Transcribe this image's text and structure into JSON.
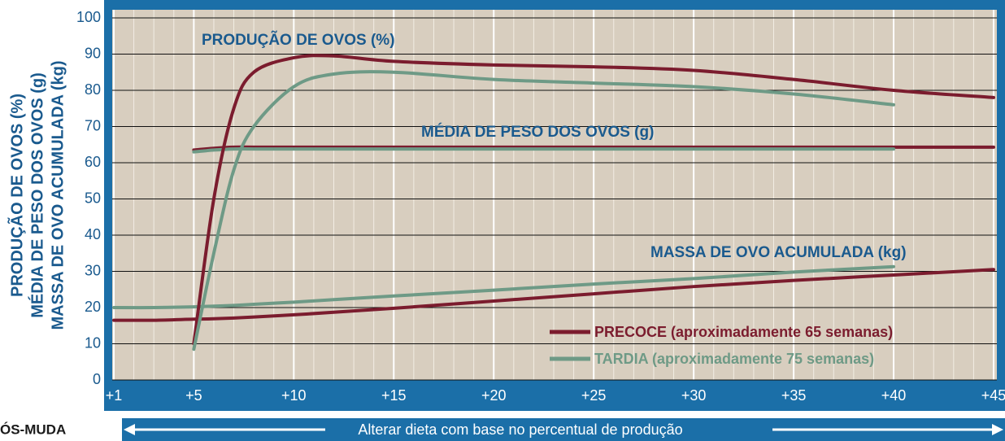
{
  "chart_data": {
    "type": "line",
    "ylabel": [
      "PRODUÇÃO DE OVOS (%)",
      "MÉDIA DE PESO DOS OVOS (g)",
      "MASSA DE OVO ACUMULADA (kg)"
    ],
    "annotations": [
      "PRODUÇÃO DE OVOS (%)",
      "MÉDIA DE PESO DOS OVOS (g)",
      "MASSA DE OVO ACUMULADA (kg)"
    ],
    "left_label": "ÓS-MUDA",
    "arrow_text": "Alterar dieta com base no percentual de produção",
    "x": [
      1,
      3,
      5,
      6,
      7,
      8,
      10,
      12,
      15,
      20,
      25,
      30,
      35,
      40,
      45
    ],
    "series": [
      {
        "name": "PRECOCE (aproximadamente 65 semanas)",
        "color": "#7b1c2e",
        "production": [
          null,
          null,
          10,
          50,
          75,
          85,
          89,
          89.5,
          88,
          87,
          86.5,
          85.5,
          83,
          80,
          78
        ],
        "egg_weight": [
          null,
          null,
          63.5,
          64,
          64.3,
          64.3,
          64.3,
          64.3,
          64.3,
          64.3,
          64.3,
          64.3,
          64.3,
          64.3,
          64.3
        ],
        "egg_mass": [
          16.5,
          16.5,
          16.8,
          16.9,
          17.1,
          17.4,
          18,
          18.7,
          19.8,
          21.8,
          23.8,
          25.8,
          27.5,
          29,
          30.5
        ]
      },
      {
        "name": "TARDIA (aproximadamente 75 semanas)",
        "color": "#6e9a86",
        "production": [
          null,
          null,
          8.5,
          35,
          58,
          70,
          81,
          84.5,
          85,
          83,
          82,
          81,
          79,
          76,
          null
        ],
        "egg_weight": [
          null,
          null,
          63,
          63.5,
          63.8,
          63.8,
          63.8,
          63.8,
          63.8,
          63.8,
          63.8,
          63.8,
          63.8,
          63.8,
          null
        ],
        "egg_mass": [
          20,
          20,
          20.2,
          20.4,
          20.6,
          20.9,
          21.5,
          22.2,
          23.2,
          24.8,
          26.5,
          28,
          29.8,
          31.3,
          null
        ]
      }
    ],
    "xlim": [
      1,
      45
    ],
    "xticks": [
      {
        "value": 1,
        "label": "+1"
      },
      {
        "value": 5,
        "label": "+5"
      },
      {
        "value": 10,
        "label": "+10"
      },
      {
        "value": 15,
        "label": "+15"
      },
      {
        "value": 20,
        "label": "+20"
      },
      {
        "value": 25,
        "label": "+25"
      },
      {
        "value": 30,
        "label": "+30"
      },
      {
        "value": 35,
        "label": "+35"
      },
      {
        "value": 40,
        "label": "+40"
      },
      {
        "value": 45,
        "label": "+45"
      }
    ],
    "ylim": [
      0,
      100
    ],
    "yticks": [
      0,
      10,
      20,
      30,
      40,
      50,
      60,
      70,
      80,
      90,
      100
    ],
    "grid": true,
    "legend": "lower right"
  }
}
